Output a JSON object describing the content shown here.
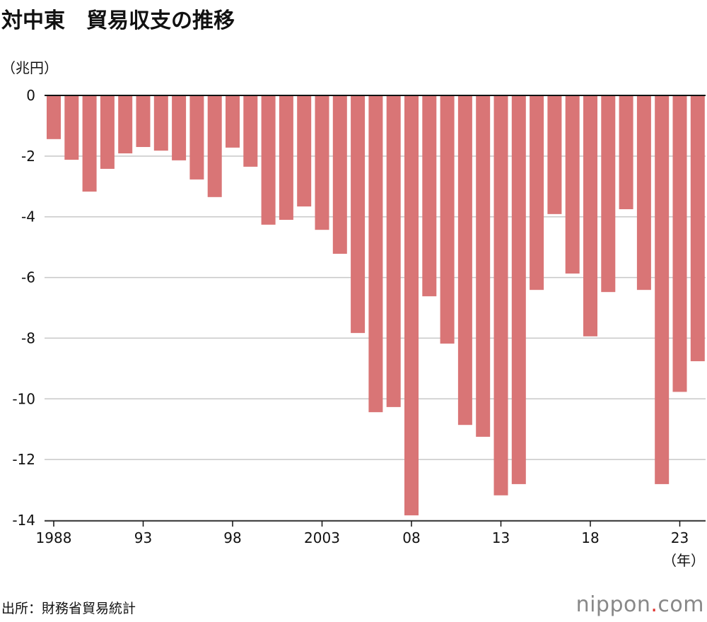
{
  "title": "対中東　貿易収支の推移",
  "source": "出所：財務省貿易統計",
  "logo": {
    "text": "nippon",
    "dot": ".",
    "suffix": "com"
  },
  "chart_data": {
    "type": "bar",
    "title": "対中東　貿易収支の推移",
    "ylabel": "（兆円）",
    "xlabel": "（年）",
    "ylim": [
      -14,
      0
    ],
    "yticks": [
      0,
      -2,
      -4,
      -6,
      -8,
      -10,
      -12,
      -14
    ],
    "grid": true,
    "bar_color": "#d97576",
    "x_tick_labels": [
      {
        "year": 1988,
        "label": "1988"
      },
      {
        "year": 1993,
        "label": "93"
      },
      {
        "year": 1998,
        "label": "98"
      },
      {
        "year": 2003,
        "label": "2003"
      },
      {
        "year": 2008,
        "label": "08"
      },
      {
        "year": 2013,
        "label": "13"
      },
      {
        "year": 2018,
        "label": "18"
      },
      {
        "year": 2023,
        "label": "23"
      }
    ],
    "categories": [
      1988,
      1989,
      1990,
      1991,
      1992,
      1993,
      1994,
      1995,
      1996,
      1997,
      1998,
      1999,
      2000,
      2001,
      2002,
      2003,
      2004,
      2005,
      2006,
      2007,
      2008,
      2009,
      2010,
      2011,
      2012,
      2013,
      2014,
      2015,
      2016,
      2017,
      2018,
      2019,
      2020,
      2021,
      2022,
      2023,
      2024
    ],
    "values": [
      -1.44,
      -2.12,
      -3.17,
      -2.42,
      -1.91,
      -1.7,
      -1.82,
      -2.14,
      -2.77,
      -3.35,
      -1.72,
      -2.35,
      -4.26,
      -4.1,
      -3.66,
      -4.43,
      -5.22,
      -7.83,
      -10.44,
      -10.27,
      -13.84,
      -6.62,
      -8.18,
      -10.86,
      -11.25,
      -13.18,
      -12.81,
      -6.41,
      -3.91,
      -5.87,
      -7.94,
      -6.48,
      -3.75,
      -6.41,
      -12.81,
      -9.77,
      -8.76
    ]
  }
}
